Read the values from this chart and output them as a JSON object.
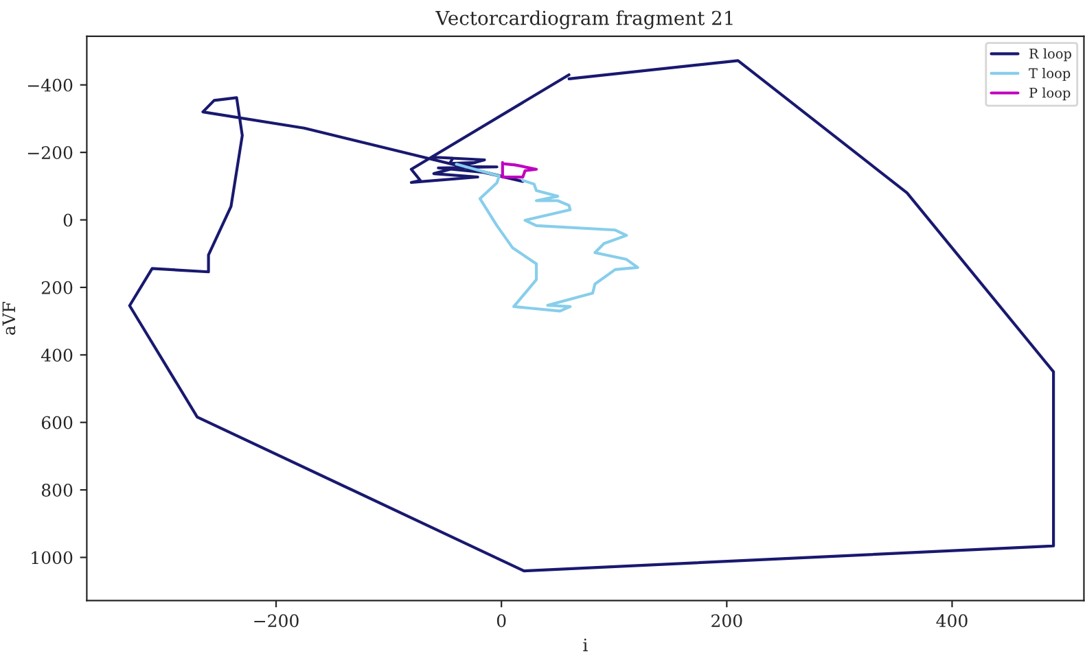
{
  "chart_data": {
    "type": "line",
    "title": "Vectorcardiogram fragment 21",
    "xlabel": "i",
    "ylabel": "aVF",
    "xlim": [
      -368,
      517
    ],
    "ylim": [
      1128,
      -544
    ],
    "xticks": [
      {
        "value": -200,
        "label": "−200"
      },
      0,
      200,
      400
    ],
    "yticks": [
      {
        "value": -400,
        "label": "−400"
      },
      {
        "value": -200,
        "label": "−200"
      },
      0,
      200,
      400,
      600,
      800,
      1000
    ],
    "grid": false,
    "legend": "top right",
    "line_style": "solid",
    "marker": "none",
    "series": [
      {
        "name": "R loop",
        "color": "#191970",
        "x": [
          60,
          210,
          360,
          490,
          490,
          20,
          -270,
          -330,
          -310,
          -260,
          -260,
          -240,
          -230,
          -235,
          -255,
          -265,
          -175,
          19,
          -16,
          -56,
          -4,
          -40,
          -23,
          -46,
          -43,
          -62,
          -15,
          -60,
          -21,
          -80,
          -72,
          -80,
          60
        ],
        "values": [
          -418,
          -472,
          -80,
          450,
          966,
          1040,
          584,
          254,
          144,
          154,
          104,
          -40,
          -250,
          -362,
          -354,
          -320,
          -272,
          -114,
          -141,
          -154,
          -157,
          -158,
          -170,
          -167,
          -183,
          -186,
          -178,
          -137,
          -127,
          -111,
          -117,
          -150,
          -430
        ]
      },
      {
        "name": "T loop",
        "color": "#87ceeb",
        "x": [
          -40,
          -2,
          -4,
          -19,
          -4,
          10,
          31,
          31,
          11,
          52,
          61,
          41,
          81,
          83,
          101,
          121,
          111,
          83,
          91,
          111,
          101,
          31,
          21,
          61,
          60,
          50,
          31,
          50,
          31,
          29,
          19
        ],
        "values": [
          -165,
          -130,
          -110,
          -63,
          17,
          83,
          130,
          177,
          257,
          270,
          257,
          253,
          217,
          190,
          147,
          141,
          117,
          97,
          70,
          46,
          30,
          17,
          1,
          -30,
          -43,
          -57,
          -57,
          -70,
          -87,
          -106,
          -117
        ]
      },
      {
        "name": "P loop",
        "color": "#c000c0",
        "x": [
          1,
          1,
          19,
          21,
          31,
          12,
          3
        ],
        "values": [
          -170,
          -127,
          -127,
          -146,
          -150,
          -163,
          -166
        ]
      }
    ]
  }
}
